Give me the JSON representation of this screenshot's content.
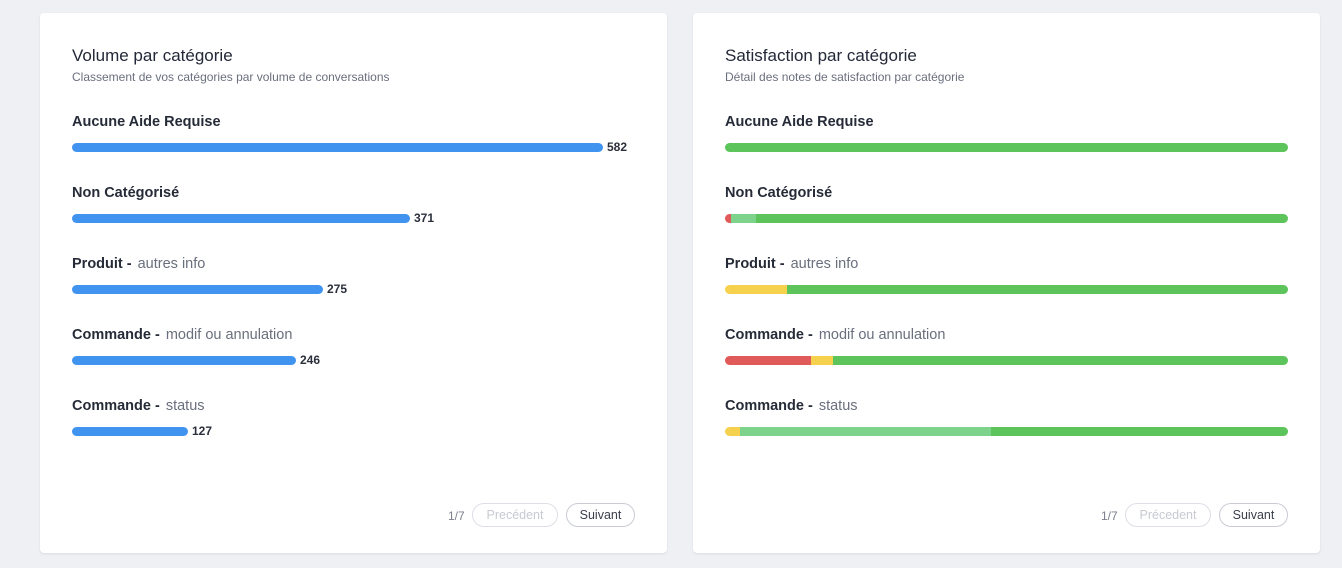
{
  "volume": {
    "title": "Volume par catégorie",
    "subtitle": "Classement de vos catégories par volume de conversations",
    "bar_color": "#4193f0",
    "max_value": 582,
    "rows": [
      {
        "label": "Aucune Aide Requise",
        "sub": "",
        "value": "582",
        "count": 582
      },
      {
        "label": "Non Catégorisé",
        "sub": "",
        "value": "371",
        "count": 371
      },
      {
        "label": "Produit -",
        "sub": "autres info",
        "value": "275",
        "count": 275
      },
      {
        "label": "Commande -",
        "sub": "modif ou annulation",
        "value": "246",
        "count": 246
      },
      {
        "label": "Commande -",
        "sub": "status",
        "value": "127",
        "count": 127
      }
    ],
    "pager": {
      "page": "1/7",
      "prev": "Precédent",
      "next": "Suivant"
    }
  },
  "satisfaction": {
    "title": "Satisfaction par catégorie",
    "subtitle": "Détail des notes de satisfaction par catégorie",
    "colors": {
      "red": "#e05a5a",
      "yellow": "#f6d14d",
      "lightgreen": "#7dd38c",
      "green": "#5cc45a"
    },
    "rows": [
      {
        "label": "Aucune Aide Requise",
        "sub": "",
        "segments": [
          {
            "color": "green",
            "pct": 100
          }
        ]
      },
      {
        "label": "Non Catégorisé",
        "sub": "",
        "segments": [
          {
            "color": "red",
            "pct": 1
          },
          {
            "color": "lightgreen",
            "pct": 4.5
          },
          {
            "color": "green",
            "pct": 94.5
          }
        ]
      },
      {
        "label": "Produit -",
        "sub": "autres info",
        "segments": [
          {
            "color": "yellow",
            "pct": 11
          },
          {
            "color": "green",
            "pct": 89
          }
        ]
      },
      {
        "label": "Commande -",
        "sub": "modif ou annulation",
        "segments": [
          {
            "color": "red",
            "pct": 15.3
          },
          {
            "color": "yellow",
            "pct": 3.9
          },
          {
            "color": "green",
            "pct": 80.8
          }
        ]
      },
      {
        "label": "Commande -",
        "sub": "status",
        "segments": [
          {
            "color": "yellow",
            "pct": 2.7
          },
          {
            "color": "lightgreen",
            "pct": 44.5
          },
          {
            "color": "green",
            "pct": 52.8
          }
        ]
      }
    ],
    "pager": {
      "page": "1/7",
      "prev": "Précedent",
      "next": "Suivant"
    }
  }
}
